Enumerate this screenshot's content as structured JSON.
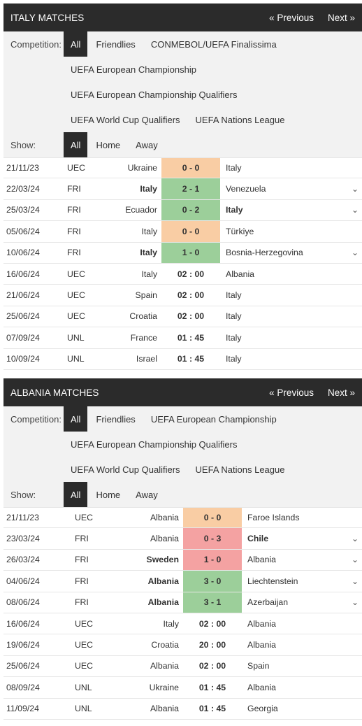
{
  "italy": {
    "title": "ITALY MATCHES",
    "prev": "« Previous",
    "next": "Next »",
    "competition_label": "Competition:",
    "competitions": [
      "All",
      "Friendlies",
      "CONMEBOL/UEFA Finalissima",
      "UEFA European Championship",
      "UEFA European Championship Qualifiers",
      "UEFA World Cup Qualifiers",
      "UEFA Nations League"
    ],
    "show_label": "Show:",
    "show_options": [
      "All",
      "Home",
      "Away"
    ],
    "matches": [
      {
        "date": "21/11/23",
        "comp": "UEC",
        "home": "Ukraine",
        "score": "0 - 0",
        "away": "Italy",
        "result": "draw",
        "bold": "",
        "chev": false
      },
      {
        "date": "22/03/24",
        "comp": "FRI",
        "home": "Italy",
        "score": "2 - 1",
        "away": "Venezuela",
        "result": "win",
        "bold": "home",
        "chev": true
      },
      {
        "date": "25/03/24",
        "comp": "FRI",
        "home": "Ecuador",
        "score": "0 - 2",
        "away": "Italy",
        "result": "win",
        "bold": "away",
        "chev": true
      },
      {
        "date": "05/06/24",
        "comp": "FRI",
        "home": "Italy",
        "score": "0 - 0",
        "away": "Türkiye",
        "result": "draw",
        "bold": "",
        "chev": false
      },
      {
        "date": "10/06/24",
        "comp": "FRI",
        "home": "Italy",
        "score": "1 - 0",
        "away": "Bosnia-Herzegovina",
        "result": "win",
        "bold": "home",
        "chev": true
      },
      {
        "date": "16/06/24",
        "comp": "UEC",
        "home": "Italy",
        "score": "02 : 00",
        "away": "Albania",
        "result": "",
        "bold": "",
        "chev": false
      },
      {
        "date": "21/06/24",
        "comp": "UEC",
        "home": "Spain",
        "score": "02 : 00",
        "away": "Italy",
        "result": "",
        "bold": "",
        "chev": false
      },
      {
        "date": "25/06/24",
        "comp": "UEC",
        "home": "Croatia",
        "score": "02 : 00",
        "away": "Italy",
        "result": "",
        "bold": "",
        "chev": false
      },
      {
        "date": "07/09/24",
        "comp": "UNL",
        "home": "France",
        "score": "01 : 45",
        "away": "Italy",
        "result": "",
        "bold": "",
        "chev": false
      },
      {
        "date": "10/09/24",
        "comp": "UNL",
        "home": "Israel",
        "score": "01 : 45",
        "away": "Italy",
        "result": "",
        "bold": "",
        "chev": false
      }
    ]
  },
  "albania": {
    "title": "ALBANIA MATCHES",
    "prev": "« Previous",
    "next": "Next »",
    "competition_label": "Competition:",
    "competitions": [
      "All",
      "Friendlies",
      "UEFA European Championship",
      "UEFA European Championship Qualifiers",
      "UEFA World Cup Qualifiers",
      "UEFA Nations League"
    ],
    "show_label": "Show:",
    "show_options": [
      "All",
      "Home",
      "Away"
    ],
    "matches": [
      {
        "date": "21/11/23",
        "comp": "UEC",
        "home": "Albania",
        "score": "0 - 0",
        "away": "Faroe Islands",
        "result": "draw",
        "bold": "",
        "chev": false
      },
      {
        "date": "23/03/24",
        "comp": "FRI",
        "home": "Albania",
        "score": "0 - 3",
        "away": "Chile",
        "result": "loss",
        "bold": "away",
        "chev": true
      },
      {
        "date": "26/03/24",
        "comp": "FRI",
        "home": "Sweden",
        "score": "1 - 0",
        "away": "Albania",
        "result": "loss",
        "bold": "home",
        "chev": true
      },
      {
        "date": "04/06/24",
        "comp": "FRI",
        "home": "Albania",
        "score": "3 - 0",
        "away": "Liechtenstein",
        "result": "win",
        "bold": "home",
        "chev": true
      },
      {
        "date": "08/06/24",
        "comp": "FRI",
        "home": "Albania",
        "score": "3 - 1",
        "away": "Azerbaijan",
        "result": "win",
        "bold": "home",
        "chev": true
      },
      {
        "date": "16/06/24",
        "comp": "UEC",
        "home": "Italy",
        "score": "02 : 00",
        "away": "Albania",
        "result": "",
        "bold": "",
        "chev": false
      },
      {
        "date": "19/06/24",
        "comp": "UEC",
        "home": "Croatia",
        "score": "20 : 00",
        "away": "Albania",
        "result": "",
        "bold": "",
        "chev": false
      },
      {
        "date": "25/06/24",
        "comp": "UEC",
        "home": "Albania",
        "score": "02 : 00",
        "away": "Spain",
        "result": "",
        "bold": "",
        "chev": false
      },
      {
        "date": "08/09/24",
        "comp": "UNL",
        "home": "Ukraine",
        "score": "01 : 45",
        "away": "Albania",
        "result": "",
        "bold": "",
        "chev": false
      },
      {
        "date": "11/09/24",
        "comp": "UNL",
        "home": "Albania",
        "score": "01 : 45",
        "away": "Georgia",
        "result": "",
        "bold": "",
        "chev": false
      }
    ]
  },
  "icons": {
    "chevron": "chevron-down-icon",
    "chevron_glyph": "⌄"
  }
}
